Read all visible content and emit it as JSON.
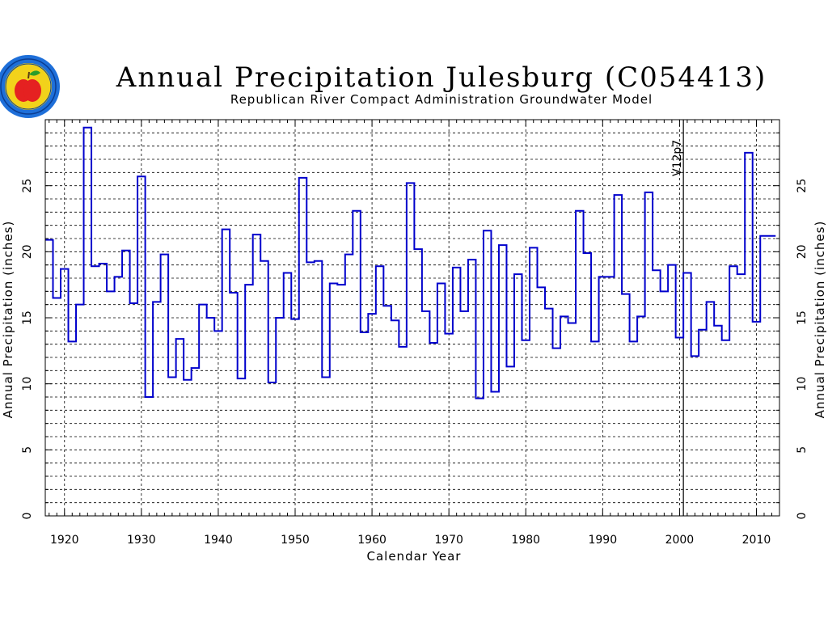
{
  "chart_data": {
    "type": "step",
    "title": "Annual Precipitation Julesburg (C054413)",
    "subtitle": "Republican River Compact Administration Groundwater Model",
    "xlabel": "Calendar Year",
    "ylabel": "Annual Precipitation (inches)",
    "ylabel_right": "Annual Precipitation (inches)",
    "xlim": [
      1917.5,
      2013
    ],
    "ylim": [
      0,
      30
    ],
    "x_ticks": [
      1920,
      1930,
      1940,
      1950,
      1960,
      1970,
      1980,
      1990,
      2000,
      2010
    ],
    "y_ticks": [
      0,
      5,
      10,
      15,
      20,
      25
    ],
    "grid": true,
    "line_color": "#0000cc",
    "marker": {
      "x": 2000.5,
      "label": "V12p7"
    },
    "years": [
      1918,
      1919,
      1920,
      1921,
      1922,
      1923,
      1924,
      1925,
      1926,
      1927,
      1928,
      1929,
      1930,
      1931,
      1932,
      1933,
      1934,
      1935,
      1936,
      1937,
      1938,
      1939,
      1940,
      1941,
      1942,
      1943,
      1944,
      1945,
      1946,
      1947,
      1948,
      1949,
      1950,
      1951,
      1952,
      1953,
      1954,
      1955,
      1956,
      1957,
      1958,
      1959,
      1960,
      1961,
      1962,
      1963,
      1964,
      1965,
      1966,
      1967,
      1968,
      1969,
      1970,
      1971,
      1972,
      1973,
      1974,
      1975,
      1976,
      1977,
      1978,
      1979,
      1980,
      1981,
      1982,
      1983,
      1984,
      1985,
      1986,
      1987,
      1988,
      1989,
      1990,
      1991,
      1992,
      1993,
      1994,
      1995,
      1996,
      1997,
      1998,
      1999,
      2000,
      2001,
      2002,
      2003,
      2004,
      2005,
      2006,
      2007,
      2008,
      2009,
      2010,
      2011,
      2012
    ],
    "values": [
      20.9,
      16.5,
      18.7,
      13.2,
      16.0,
      29.4,
      18.9,
      19.1,
      17.0,
      18.1,
      20.1,
      16.1,
      25.7,
      9.0,
      16.2,
      19.8,
      10.5,
      13.4,
      10.3,
      11.2,
      16.0,
      15.0,
      14.0,
      21.7,
      16.9,
      10.4,
      17.5,
      21.3,
      19.3,
      10.1,
      15.0,
      18.4,
      14.9,
      25.6,
      19.2,
      19.3,
      10.5,
      17.6,
      17.5,
      19.8,
      23.1,
      13.9,
      15.3,
      18.9,
      15.9,
      14.8,
      12.8,
      25.2,
      20.2,
      15.5,
      13.1,
      17.6,
      13.8,
      18.8,
      15.5,
      19.4,
      8.9,
      21.6,
      9.4,
      20.5,
      11.3,
      18.3,
      13.3,
      20.3,
      17.3,
      15.7,
      12.7,
      15.1,
      14.6,
      23.1,
      19.9,
      13.2,
      18.1,
      18.1,
      24.3,
      16.8,
      13.2,
      15.1,
      24.5,
      18.6,
      17.0,
      19.0,
      13.5,
      18.4,
      12.1,
      14.1,
      16.2,
      14.4,
      13.3,
      18.9,
      18.3,
      27.5,
      14.7,
      21.2,
      21.2
    ]
  },
  "logo": {
    "icon": "apple-seal-icon",
    "colors": {
      "ring": "#1e6fd9",
      "seal": "#f2d21b",
      "apple": "#e52121",
      "leaf": "#2a9d2a"
    }
  }
}
